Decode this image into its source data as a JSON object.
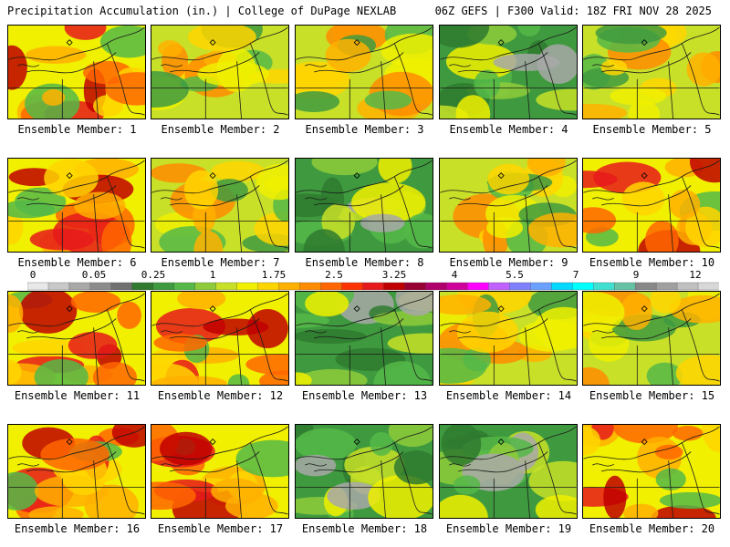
{
  "header": {
    "title_left": "Precipitation Accumulation (in.) | College of DuPage NEXLAB",
    "title_right": "06Z GEFS | F300 Valid: 18Z FRI NOV 28 2025"
  },
  "colorbar": {
    "ticks": [
      "0",
      "0.05",
      "0.25",
      "1",
      "1.75",
      "2.5",
      "3.25",
      "4",
      "5.5",
      "7",
      "9",
      "12"
    ],
    "colors": [
      "#e8e8e8",
      "#c8c8c8",
      "#a8a8a8",
      "#8c8c8c",
      "#707070",
      "#2f7a2f",
      "#3f9a3f",
      "#55b848",
      "#8ecb3a",
      "#c8e028",
      "#f0f000",
      "#ffd500",
      "#ffb000",
      "#ff8c00",
      "#ff6600",
      "#ff3300",
      "#e61a1a",
      "#c00000",
      "#990033",
      "#b0006a",
      "#d0009a",
      "#ff00ff",
      "#c060ff",
      "#8080ff",
      "#6aa0ff",
      "#00d8ff",
      "#00ffff",
      "#40e0d0",
      "#66c2a5",
      "#888888",
      "#a0a0a0",
      "#c0c0c0",
      "#d8d8d8"
    ]
  },
  "members": [
    {
      "label": "Ensemble Member: 1",
      "tone": "wet"
    },
    {
      "label": "Ensemble Member: 2",
      "tone": "mid"
    },
    {
      "label": "Ensemble Member: 3",
      "tone": "mid"
    },
    {
      "label": "Ensemble Member: 4",
      "tone": "dry"
    },
    {
      "label": "Ensemble Member: 5",
      "tone": "mid"
    },
    {
      "label": "Ensemble Member: 6",
      "tone": "wet"
    },
    {
      "label": "Ensemble Member: 7",
      "tone": "mid"
    },
    {
      "label": "Ensemble Member: 8",
      "tone": "dry"
    },
    {
      "label": "Ensemble Member: 9",
      "tone": "mid"
    },
    {
      "label": "Ensemble Member: 10",
      "tone": "wet"
    },
    {
      "label": "Ensemble Member: 11",
      "tone": "wet"
    },
    {
      "label": "Ensemble Member: 12",
      "tone": "wet"
    },
    {
      "label": "Ensemble Member: 13",
      "tone": "dry"
    },
    {
      "label": "Ensemble Member: 14",
      "tone": "mid"
    },
    {
      "label": "Ensemble Member: 15",
      "tone": "mid"
    },
    {
      "label": "Ensemble Member: 16",
      "tone": "wet"
    },
    {
      "label": "Ensemble Member: 17",
      "tone": "wet"
    },
    {
      "label": "Ensemble Member: 18",
      "tone": "dry"
    },
    {
      "label": "Ensemble Member: 19",
      "tone": "dry"
    },
    {
      "label": "Ensemble Member: 20",
      "tone": "wet"
    }
  ]
}
